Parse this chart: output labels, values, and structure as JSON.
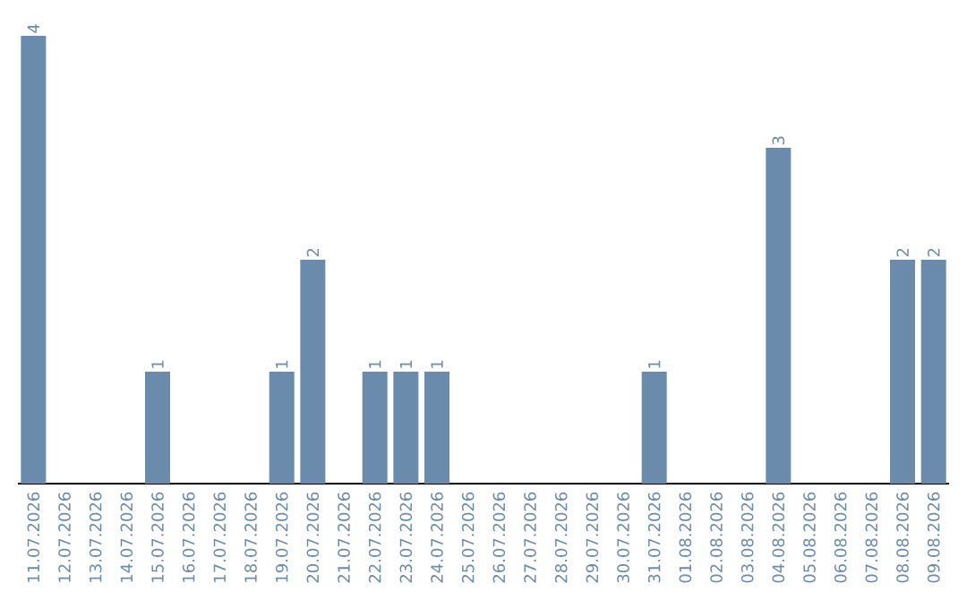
{
  "chart_data": {
    "type": "bar",
    "categories": [
      "11.07.2026",
      "12.07.2026",
      "13.07.2026",
      "14.07.2026",
      "15.07.2026",
      "16.07.2026",
      "17.07.2026",
      "18.07.2026",
      "19.07.2026",
      "20.07.2026",
      "21.07.2026",
      "22.07.2026",
      "23.07.2026",
      "24.07.2026",
      "25.07.2026",
      "26.07.2026",
      "27.07.2026",
      "28.07.2026",
      "29.07.2026",
      "30.07.2026",
      "31.07.2026",
      "01.08.2026",
      "02.08.2026",
      "03.08.2026",
      "04.08.2026",
      "05.08.2026",
      "06.08.2026",
      "07.08.2026",
      "08.08.2026",
      "09.08.2026"
    ],
    "values": [
      4,
      0,
      0,
      0,
      1,
      0,
      0,
      0,
      1,
      2,
      0,
      1,
      1,
      1,
      0,
      0,
      0,
      0,
      0,
      0,
      1,
      0,
      0,
      0,
      3,
      0,
      0,
      0,
      2,
      2
    ],
    "value_labels": [
      "4",
      null,
      null,
      null,
      "1",
      null,
      null,
      null,
      "1",
      "2",
      null,
      "1",
      "1",
      "1",
      null,
      null,
      null,
      null,
      null,
      null,
      "1",
      null,
      null,
      null,
      "3",
      null,
      null,
      null,
      "2",
      "2"
    ],
    "color": "#6a8bab"
  }
}
